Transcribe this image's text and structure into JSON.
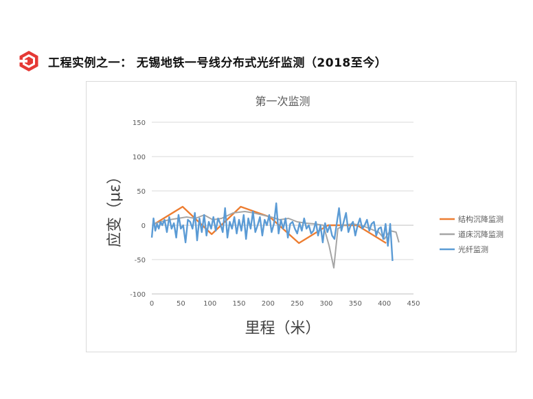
{
  "header": {
    "logo_icon": "red-hexagon-logo-icon",
    "title": "工程实例之一： 无锡地铁一号线分布式光纤监测（2018至今）"
  },
  "chart_data": {
    "type": "line",
    "title": "第一次监测",
    "xlabel": "里程（米）",
    "ylabel": "应变（με）",
    "xlim": [
      0,
      450
    ],
    "ylim": [
      -100,
      150
    ],
    "x_ticks": [
      0,
      50,
      100,
      150,
      200,
      250,
      300,
      350,
      400,
      450
    ],
    "y_ticks": [
      150,
      100,
      50,
      0,
      -50,
      -100
    ],
    "grid": "horizontal",
    "legend_position": "right",
    "series": [
      {
        "name": "结构沉降监测",
        "color": "#ED7D31",
        "x": [
          3,
          53,
          103,
          153,
          203,
          253,
          303,
          353,
          403
        ],
        "y": [
          1,
          27,
          -13,
          27,
          12,
          -26,
          0,
          0,
          -26
        ]
      },
      {
        "name": "道床沉降监测",
        "color": "#A5A5A5",
        "x": [
          3,
          15,
          30,
          45,
          60,
          75,
          90,
          105,
          120,
          140,
          160,
          175,
          190,
          205,
          220,
          235,
          250,
          265,
          280,
          295,
          305,
          313,
          320,
          330,
          345,
          360,
          375,
          390,
          400,
          410,
          420,
          425
        ],
        "y": [
          2,
          5,
          8,
          10,
          12,
          10,
          15,
          8,
          10,
          18,
          20,
          18,
          15,
          12,
          8,
          10,
          5,
          3,
          2,
          0,
          -30,
          -62,
          -5,
          0,
          2,
          0,
          -5,
          -10,
          -20,
          -8,
          -10,
          -25
        ]
      },
      {
        "name": "光纤监测",
        "color": "#5B9BD5",
        "x": [
          0,
          3,
          6,
          9,
          12,
          15,
          18,
          22,
          26,
          30,
          34,
          38,
          42,
          46,
          50,
          54,
          58,
          62,
          66,
          70,
          74,
          78,
          82,
          86,
          90,
          94,
          98,
          102,
          106,
          110,
          114,
          118,
          122,
          126,
          130,
          134,
          138,
          142,
          146,
          150,
          154,
          158,
          162,
          166,
          170,
          174,
          178,
          182,
          186,
          190,
          194,
          198,
          202,
          206,
          210,
          214,
          218,
          222,
          226,
          230,
          234,
          238,
          242,
          246,
          250,
          254,
          258,
          262,
          266,
          270,
          274,
          278,
          282,
          286,
          290,
          294,
          298,
          302,
          306,
          310,
          314,
          318,
          322,
          326,
          330,
          334,
          338,
          342,
          346,
          350,
          354,
          358,
          362,
          366,
          370,
          374,
          378,
          382,
          386,
          390,
          394,
          398,
          402,
          406,
          410,
          414
        ],
        "y": [
          -18,
          10,
          -8,
          2,
          -5,
          5,
          0,
          8,
          -10,
          12,
          -5,
          3,
          -18,
          15,
          -5,
          0,
          -25,
          8,
          5,
          -5,
          18,
          -22,
          10,
          -10,
          15,
          -15,
          5,
          -5,
          12,
          -8,
          10,
          2,
          -10,
          25,
          -18,
          5,
          -5,
          12,
          -12,
          8,
          -8,
          15,
          -20,
          10,
          -5,
          20,
          -10,
          0,
          12,
          -15,
          8,
          0,
          15,
          -10,
          2,
          32,
          -12,
          8,
          -5,
          10,
          -18,
          2,
          5,
          -5,
          -12,
          3,
          -8,
          10,
          -5,
          0,
          -12,
          -8,
          5,
          -15,
          0,
          -25,
          3,
          -10,
          0,
          -15,
          -20,
          2,
          25,
          -8,
          5,
          18,
          -10,
          0,
          5,
          -15,
          0,
          10,
          -5,
          0,
          8,
          -8,
          2,
          5,
          -15,
          -5,
          -3,
          -20,
          2,
          -30,
          2,
          -52
        ]
      }
    ]
  }
}
